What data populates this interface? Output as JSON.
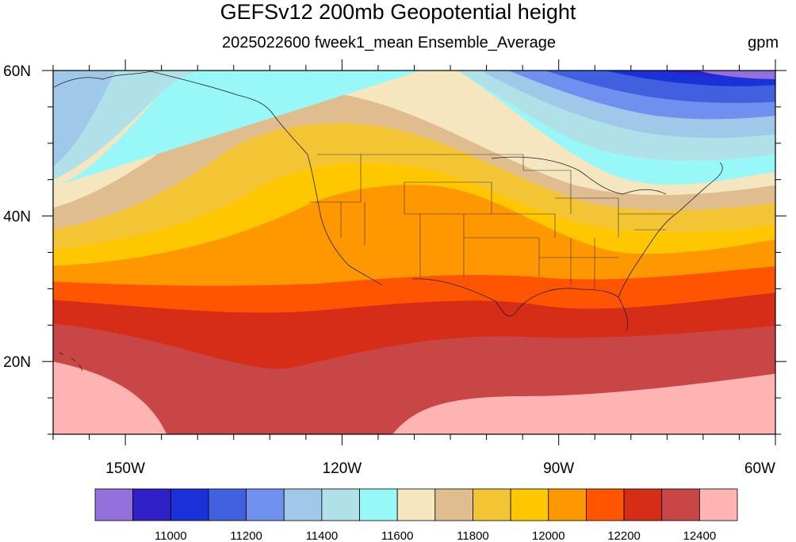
{
  "title": "GEFSv12 200mb Geopotential height",
  "subtitle": "2025022600 fweek1_mean Ensemble_Average",
  "units": "gpm",
  "map": {
    "lat_labels": [
      "60N",
      "40N",
      "20N"
    ],
    "lon_labels": [
      "150W",
      "120W",
      "90W",
      "60W"
    ],
    "lat_range": [
      10,
      60
    ],
    "lon_range": [
      -160,
      -60
    ]
  },
  "colorbar": {
    "colors": [
      "#9370db",
      "#3020c8",
      "#1a30d8",
      "#4060e0",
      "#7090f0",
      "#a0c8e8",
      "#b0e0e8",
      "#98f8f8",
      "#f5e6c0",
      "#dfbd8e",
      "#f3c534",
      "#ffc700",
      "#ff9800",
      "#ff5400",
      "#d62d18",
      "#c84646",
      "#ffb4b4"
    ],
    "labels": [
      "11000",
      "11200",
      "11400",
      "11600",
      "11800",
      "12000",
      "12200",
      "12400"
    ]
  }
}
